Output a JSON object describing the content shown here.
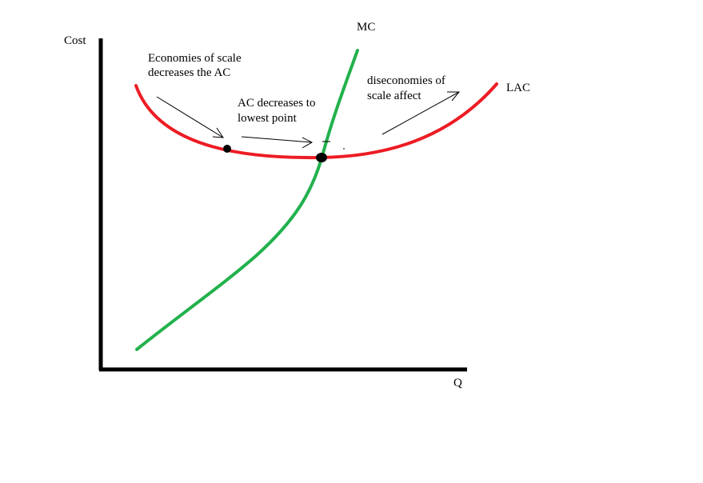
{
  "axes": {
    "y_label": "Cost",
    "x_label": "Q"
  },
  "curves": {
    "mc_label": "MC",
    "lac_label": "LAC"
  },
  "annotations": {
    "economies_line1": "Economies of scale",
    "economies_line2": "decreases the AC",
    "lowest_line1": "AC decreases to",
    "lowest_line2": "lowest point",
    "dis_line1": "diseconomies of",
    "dis_line2": "scale affect"
  },
  "colors": {
    "mc": "#22b14c",
    "lac": "#ed1c24",
    "axis": "#000000",
    "point": "#000000"
  }
}
